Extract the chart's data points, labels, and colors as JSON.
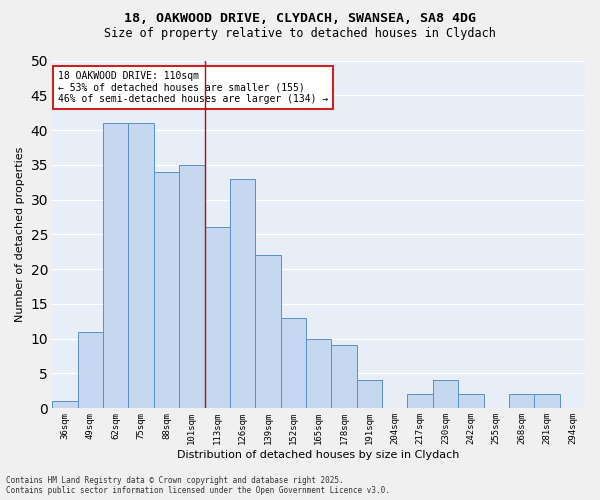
{
  "title_line1": "18, OAKWOOD DRIVE, CLYDACH, SWANSEA, SA8 4DG",
  "title_line2": "Size of property relative to detached houses in Clydach",
  "xlabel": "Distribution of detached houses by size in Clydach",
  "ylabel": "Number of detached properties",
  "categories": [
    "36sqm",
    "49sqm",
    "62sqm",
    "75sqm",
    "88sqm",
    "101sqm",
    "113sqm",
    "126sqm",
    "139sqm",
    "152sqm",
    "165sqm",
    "178sqm",
    "191sqm",
    "204sqm",
    "217sqm",
    "230sqm",
    "242sqm",
    "255sqm",
    "268sqm",
    "281sqm",
    "294sqm"
  ],
  "values": [
    1,
    11,
    41,
    41,
    34,
    35,
    26,
    33,
    22,
    13,
    10,
    9,
    4,
    0,
    2,
    4,
    2,
    0,
    2,
    2,
    0
  ],
  "bar_color": "#c5d8ef",
  "bar_edge_color": "#5b8fca",
  "background_color": "#e8eef8",
  "grid_color": "#ffffff",
  "fig_background": "#f0f0f0",
  "annotation_box_color": "#ffffff",
  "annotation_box_edge": "#cc2222",
  "vline_x": 5.5,
  "vline_color": "#aa1111",
  "annotation_text_line1": "18 OAKWOOD DRIVE: 110sqm",
  "annotation_text_line2": "← 53% of detached houses are smaller (155)",
  "annotation_text_line3": "46% of semi-detached houses are larger (134) →",
  "ylim": [
    0,
    50
  ],
  "yticks": [
    0,
    5,
    10,
    15,
    20,
    25,
    30,
    35,
    40,
    45,
    50
  ],
  "footer_text": "Contains HM Land Registry data © Crown copyright and database right 2025.\nContains public sector information licensed under the Open Government Licence v3.0.",
  "ann_fontsize": 7.0,
  "title_fontsize": 9.5,
  "subtitle_fontsize": 8.5
}
